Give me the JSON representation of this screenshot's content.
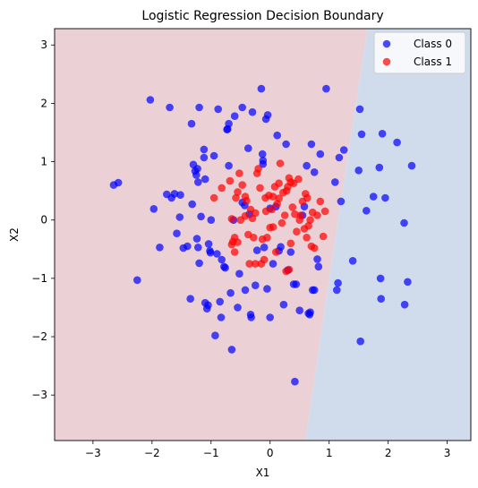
{
  "chart_data": {
    "type": "scatter",
    "title": "Logistic Regression Decision Boundary",
    "xlabel": "X1",
    "ylabel": "X2",
    "xlim": [
      -3.65,
      3.4
    ],
    "ylim": [
      -3.78,
      3.28
    ],
    "xticks": [
      -3,
      -2,
      -1,
      0,
      1,
      2,
      3
    ],
    "yticks": [
      -3,
      -2,
      -1,
      0,
      1,
      2,
      3
    ],
    "grid": false,
    "legend_position": "top-right",
    "decision_boundary": {
      "line_points": [
        [
          0.6,
          -3.78
        ],
        [
          1.0,
          -1.0
        ],
        [
          1.15,
          0
        ],
        [
          1.65,
          3.28
        ]
      ],
      "region_colors": {
        "class_1": "#ebd0d6",
        "class_0": "#d0dceb"
      }
    },
    "series": [
      {
        "name": "Class 0",
        "color": "#0000ff",
        "points": [
          [
            -2.65,
            0.6
          ],
          [
            -2.57,
            0.64
          ],
          [
            -2.25,
            -1.03
          ],
          [
            -2.03,
            2.06
          ],
          [
            -1.97,
            0.19
          ],
          [
            -1.87,
            -0.47
          ],
          [
            -1.75,
            0.44
          ],
          [
            -1.7,
            1.93
          ],
          [
            -1.67,
            0.38
          ],
          [
            -1.62,
            0.45
          ],
          [
            -1.58,
            -0.23
          ],
          [
            -1.53,
            0.05
          ],
          [
            -1.52,
            0.43
          ],
          [
            -1.47,
            -0.48
          ],
          [
            -1.4,
            -0.45
          ],
          [
            -1.35,
            -1.35
          ],
          [
            -1.33,
            1.65
          ],
          [
            -1.32,
            0.27
          ],
          [
            -1.3,
            0.95
          ],
          [
            -1.27,
            0.84
          ],
          [
            -1.25,
            0.77
          ],
          [
            -1.24,
            -0.32
          ],
          [
            -1.23,
            0.88
          ],
          [
            -1.22,
            0.65
          ],
          [
            -1.22,
            -0.47
          ],
          [
            -1.2,
            1.93
          ],
          [
            -1.2,
            -0.74
          ],
          [
            -1.17,
            0.06
          ],
          [
            -1.12,
            1.07
          ],
          [
            -1.12,
            1.21
          ],
          [
            -1.1,
            0.7
          ],
          [
            -1.1,
            -1.42
          ],
          [
            -1.07,
            -1.52
          ],
          [
            -1.05,
            -1.46
          ],
          [
            -1.04,
            -0.41
          ],
          [
            -1.02,
            -0.53
          ],
          [
            -1.01,
            -0.56
          ],
          [
            -1.0,
            0.0
          ],
          [
            -0.95,
            1.1
          ],
          [
            -0.93,
            -1.98
          ],
          [
            -0.9,
            -0.58
          ],
          [
            -0.88,
            1.9
          ],
          [
            -0.85,
            -1.4
          ],
          [
            -0.83,
            -1.67
          ],
          [
            -0.82,
            -0.68
          ],
          [
            -0.78,
            -0.8
          ],
          [
            -0.76,
            -0.82
          ],
          [
            -0.73,
            1.55
          ],
          [
            -0.72,
            1.56
          ],
          [
            -0.7,
            1.65
          ],
          [
            -0.7,
            0.93
          ],
          [
            -0.67,
            -1.25
          ],
          [
            -0.65,
            -2.22
          ],
          [
            -0.62,
            0.0
          ],
          [
            -0.6,
            1.78
          ],
          [
            -0.55,
            -1.5
          ],
          [
            -0.52,
            -0.92
          ],
          [
            -0.47,
            0.3
          ],
          [
            -0.47,
            1.93
          ],
          [
            -0.43,
            0.25
          ],
          [
            -0.42,
            -1.2
          ],
          [
            -0.37,
            1.23
          ],
          [
            -0.35,
            0.1
          ],
          [
            -0.33,
            -1.62
          ],
          [
            -0.32,
            -1.67
          ],
          [
            -0.3,
            1.85
          ],
          [
            -0.25,
            -1.12
          ],
          [
            -0.22,
            -0.52
          ],
          [
            -0.15,
            2.25
          ],
          [
            -0.13,
            1.13
          ],
          [
            -0.12,
            1.02
          ],
          [
            -0.12,
            0.96
          ],
          [
            -0.1,
            -0.47
          ],
          [
            -0.07,
            1.73
          ],
          [
            -0.05,
            -1.18
          ],
          [
            -0.04,
            1.8
          ],
          [
            0.0,
            -1.67
          ],
          [
            0.0,
            0.2
          ],
          [
            0.05,
            -0.75
          ],
          [
            0.1,
            0.23
          ],
          [
            0.12,
            1.45
          ],
          [
            0.15,
            -0.53
          ],
          [
            0.18,
            -0.46
          ],
          [
            0.23,
            -1.45
          ],
          [
            0.27,
            1.3
          ],
          [
            0.3,
            -0.86
          ],
          [
            0.35,
            -0.55
          ],
          [
            0.4,
            -1.1
          ],
          [
            0.42,
            -2.77
          ],
          [
            0.44,
            -1.1
          ],
          [
            0.5,
            -1.55
          ],
          [
            0.55,
            0.08
          ],
          [
            0.58,
            0.23
          ],
          [
            0.62,
            0.93
          ],
          [
            0.65,
            -1.6
          ],
          [
            0.67,
            -1.62
          ],
          [
            0.68,
            -1.58
          ],
          [
            0.7,
            1.3
          ],
          [
            0.72,
            -1.2
          ],
          [
            0.75,
            -1.2
          ],
          [
            0.75,
            0.82
          ],
          [
            0.8,
            -0.67
          ],
          [
            0.82,
            -0.8
          ],
          [
            0.85,
            1.13
          ],
          [
            0.95,
            2.25
          ],
          [
            1.1,
            0.65
          ],
          [
            1.13,
            -1.2
          ],
          [
            1.15,
            -1.08
          ],
          [
            1.17,
            1.07
          ],
          [
            1.2,
            0.32
          ],
          [
            1.25,
            1.2
          ],
          [
            1.4,
            -0.7
          ],
          [
            1.5,
            0.85
          ],
          [
            1.52,
            1.9
          ],
          [
            1.53,
            -2.08
          ],
          [
            1.55,
            1.47
          ],
          [
            1.63,
            0.16
          ],
          [
            1.75,
            0.4
          ],
          [
            1.85,
            0.9
          ],
          [
            1.87,
            -1.0
          ],
          [
            1.88,
            -1.35
          ],
          [
            1.9,
            1.48
          ],
          [
            1.95,
            0.38
          ],
          [
            2.15,
            1.33
          ],
          [
            2.27,
            -0.05
          ],
          [
            2.28,
            -1.45
          ],
          [
            2.33,
            -1.06
          ],
          [
            2.4,
            0.93
          ]
        ]
      },
      {
        "name": "Class 1",
        "color": "#ff0000",
        "points": [
          [
            -0.95,
            0.38
          ],
          [
            -0.82,
            0.55
          ],
          [
            -0.68,
            0.67
          ],
          [
            -0.65,
            -0.42
          ],
          [
            -0.65,
            0.02
          ],
          [
            -0.63,
            -0.37
          ],
          [
            -0.6,
            -0.55
          ],
          [
            -0.58,
            0.38
          ],
          [
            -0.55,
            0.48
          ],
          [
            -0.52,
            0.8
          ],
          [
            -0.5,
            0.0
          ],
          [
            -0.47,
            0.6
          ],
          [
            -0.42,
            0.4
          ],
          [
            -0.42,
            0.07
          ],
          [
            -0.37,
            -0.25
          ],
          [
            -0.35,
            -0.75
          ],
          [
            -0.33,
            0.18
          ],
          [
            -0.3,
            0.03
          ],
          [
            -0.28,
            -0.3
          ],
          [
            -0.25,
            -0.75
          ],
          [
            -0.22,
            0.8
          ],
          [
            -0.2,
            0.88
          ],
          [
            -0.17,
            0.55
          ],
          [
            -0.13,
            -0.33
          ],
          [
            -0.1,
            -0.68
          ],
          [
            -0.08,
            0.38
          ],
          [
            -0.07,
            0.15
          ],
          [
            -0.05,
            -0.3
          ],
          [
            -0.02,
            0.42
          ],
          [
            0.0,
            -0.13
          ],
          [
            0.03,
            0.18
          ],
          [
            0.05,
            0.4
          ],
          [
            0.08,
            0.57
          ],
          [
            0.1,
            -0.55
          ],
          [
            0.12,
            0.28
          ],
          [
            0.15,
            0.37
          ],
          [
            0.17,
            0.97
          ],
          [
            0.2,
            -0.05
          ],
          [
            0.22,
            0.47
          ],
          [
            0.25,
            0.08
          ],
          [
            0.27,
            -0.88
          ],
          [
            0.3,
            0.57
          ],
          [
            0.32,
            0.72
          ],
          [
            0.35,
            -0.4
          ],
          [
            0.38,
            0.22
          ],
          [
            0.4,
            0.63
          ],
          [
            0.42,
            0.1
          ],
          [
            0.45,
            -0.2
          ],
          [
            0.48,
            0.7
          ],
          [
            0.52,
            0.08
          ],
          [
            0.55,
            0.32
          ],
          [
            0.58,
            -0.15
          ],
          [
            0.6,
            0.45
          ],
          [
            0.63,
            0.38
          ],
          [
            0.65,
            -0.1
          ],
          [
            0.68,
            0.0
          ],
          [
            0.7,
            -0.45
          ],
          [
            0.72,
            0.13
          ],
          [
            0.75,
            -0.48
          ],
          [
            0.8,
            0.08
          ],
          [
            0.85,
            0.32
          ],
          [
            0.9,
            -0.28
          ],
          [
            0.93,
            0.15
          ],
          [
            0.32,
            -0.85
          ],
          [
            -0.55,
            -0.38
          ],
          [
            -0.6,
            -0.3
          ],
          [
            0.15,
            0.63
          ],
          [
            -0.4,
            0.33
          ],
          [
            0.05,
            -0.12
          ],
          [
            0.28,
            0.5
          ],
          [
            0.5,
            0.0
          ],
          [
            0.62,
            -0.3
          ],
          [
            -0.25,
            0.12
          ],
          [
            0.35,
            0.65
          ],
          [
            -0.15,
            -0.75
          ]
        ]
      }
    ]
  }
}
